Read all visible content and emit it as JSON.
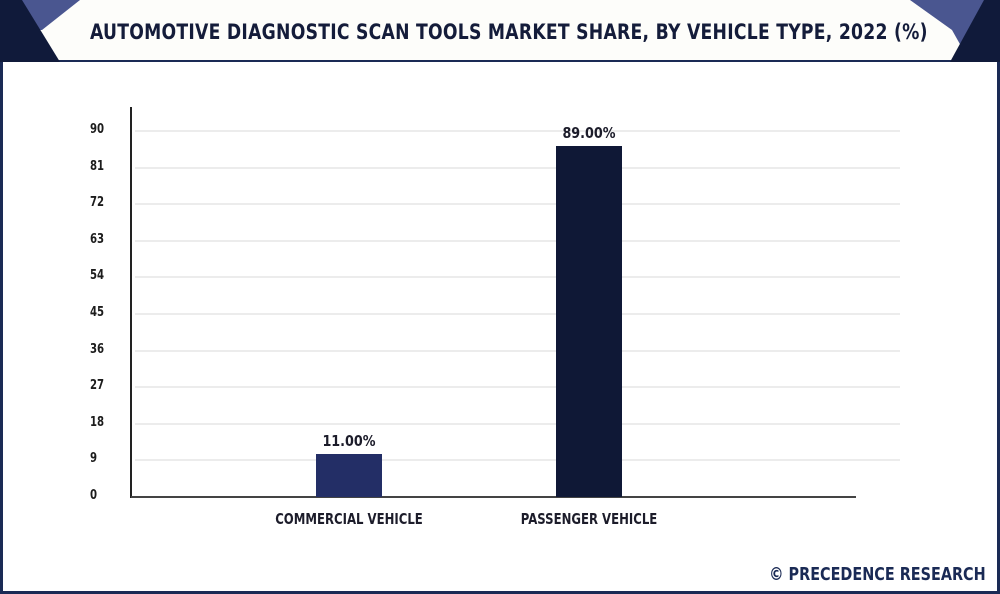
{
  "header": {
    "title": "AUTOMOTIVE DIAGNOSTIC SCAN TOOLS MARKET SHARE, BY VEHICLE TYPE, 2022 (%)"
  },
  "colors": {
    "frame": "#1a2a55",
    "corner_dark": "#101a3a",
    "corner_light": "#4a5690",
    "bar_commercial": "#232e66",
    "bar_passenger": "#0f1836",
    "gridline": "#ececec"
  },
  "yaxis": {
    "ticks": [
      "90",
      "81",
      "72",
      "63",
      "54",
      "45",
      "36",
      "27",
      "18",
      "9",
      "0"
    ]
  },
  "bars": [
    {
      "category": "COMMERCIAL VEHICLE",
      "value": 11.0,
      "label": "11.00%"
    },
    {
      "category": "PASSENGER VEHICLE",
      "value": 89.0,
      "label": "89.00%"
    }
  ],
  "footer": {
    "credit": "© PRECEDENCE RESEARCH"
  },
  "chart_data": {
    "type": "bar",
    "title": "AUTOMOTIVE DIAGNOSTIC SCAN TOOLS MARKET SHARE, BY VEHICLE TYPE, 2022 (%)",
    "categories": [
      "COMMERCIAL VEHICLE",
      "PASSENGER VEHICLE"
    ],
    "values": [
      11.0,
      89.0
    ],
    "data_labels": [
      "11.00%",
      "89.00%"
    ],
    "xlabel": "",
    "ylabel": "",
    "ylim": [
      0,
      90
    ],
    "yticks": [
      0,
      9,
      18,
      27,
      36,
      45,
      54,
      63,
      72,
      81,
      90
    ],
    "grid": true,
    "legend": "none",
    "source": "© PRECEDENCE RESEARCH"
  }
}
